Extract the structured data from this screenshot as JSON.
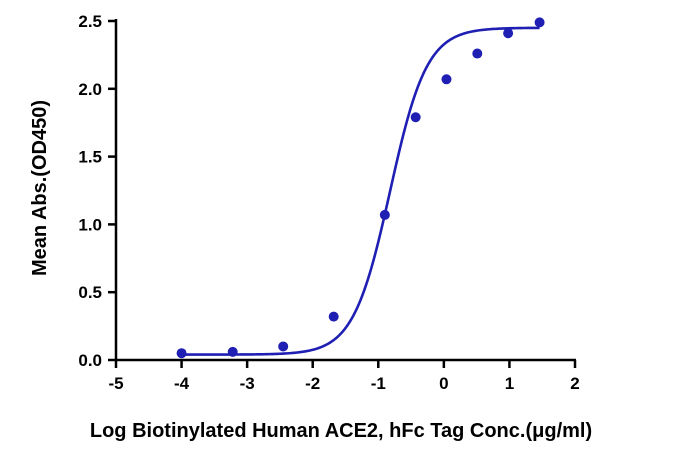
{
  "chart_data": {
    "type": "scatter",
    "title": "",
    "xlabel": "Log Biotinylated Human ACE2, hFc Tag Conc.(μg/ml)",
    "ylabel": "Mean Abs.(OD450)",
    "xlim": [
      -5,
      2
    ],
    "ylim": [
      0,
      2.5
    ],
    "x_ticks": [
      -5,
      -4,
      -3,
      -2,
      -1,
      0,
      1,
      2
    ],
    "y_ticks": [
      0.0,
      0.5,
      1.0,
      1.5,
      2.0,
      2.5
    ],
    "x_tick_labels": [
      "-5",
      "-4",
      "-3",
      "-2",
      "-1",
      "0",
      "1",
      "2"
    ],
    "y_tick_labels": [
      "0.0",
      "0.5",
      "1.0",
      "1.5",
      "2.0",
      "2.5"
    ],
    "grid": false,
    "series": [
      {
        "color": "#1f1fb4",
        "points": [
          {
            "x": -4.0,
            "y": 0.05
          },
          {
            "x": -3.22,
            "y": 0.06
          },
          {
            "x": -2.45,
            "y": 0.1
          },
          {
            "x": -1.68,
            "y": 0.32
          },
          {
            "x": -0.9,
            "y": 1.07
          },
          {
            "x": -0.43,
            "y": 1.79
          },
          {
            "x": 0.04,
            "y": 2.07
          },
          {
            "x": 0.51,
            "y": 2.26
          },
          {
            "x": 0.98,
            "y": 2.41
          },
          {
            "x": 1.46,
            "y": 2.49
          }
        ],
        "fit": {
          "model": "4PL",
          "bottom": 0.04,
          "top": 2.45,
          "logEC50": -0.82,
          "hill": 1.55,
          "x_range": [
            -4,
            1.46
          ]
        }
      }
    ]
  }
}
